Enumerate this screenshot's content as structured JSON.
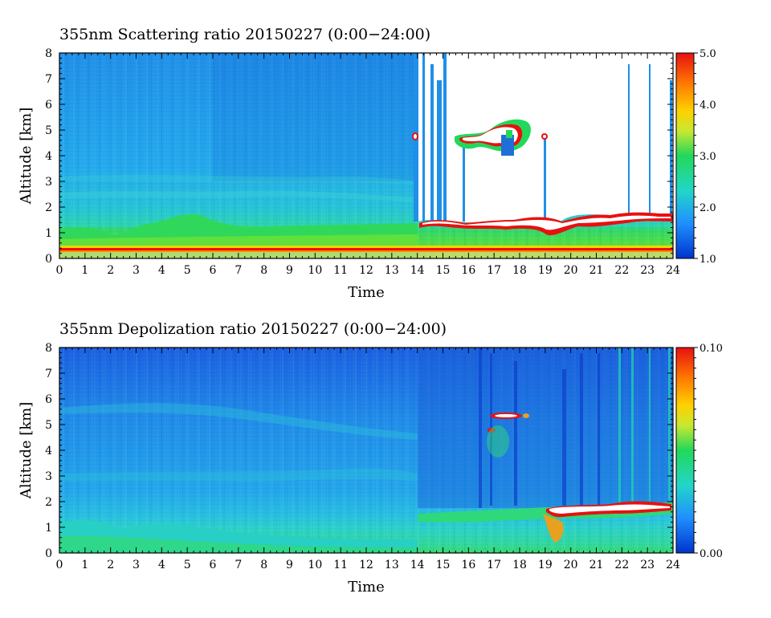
{
  "chart_data": [
    {
      "type": "heatmap",
      "title": "355nm Scattering ratio  20150227 (0:00−24:00)",
      "xlabel": "Time",
      "ylabel": "Altitude [km]",
      "x_ticks": [
        "0",
        "1",
        "2",
        "3",
        "4",
        "5",
        "6",
        "7",
        "8",
        "9",
        "10",
        "11",
        "12",
        "13",
        "14",
        "15",
        "16",
        "17",
        "18",
        "19",
        "20",
        "21",
        "22",
        "23",
        "24"
      ],
      "y_ticks": [
        "0",
        "1",
        "2",
        "3",
        "4",
        "5",
        "6",
        "7",
        "8"
      ],
      "xlim": [
        0,
        24
      ],
      "ylim": [
        0,
        8
      ],
      "colorbar": {
        "min": 1.0,
        "max": 5.0,
        "ticks": [
          "1.0",
          "2.0",
          "3.0",
          "4.0",
          "5.0"
        ]
      },
      "colors": [
        "#0033cc",
        "#1f9bff",
        "#22d6c8",
        "#22d85a",
        "#e8e830",
        "#ff8a00",
        "#e81010"
      ],
      "features": {
        "boundary_layer_top_km": 1.2,
        "near_surface_band_km": [
          0.3,
          0.45
        ],
        "clouds": [
          {
            "time_start": 14.0,
            "time_end": 24.0,
            "altitude_km": 1.4,
            "label": "low cloud layer (saturated)"
          },
          {
            "time_start": 16.3,
            "time_end": 18.4,
            "altitude_km": 4.8,
            "label": "mid-level cloud"
          }
        ],
        "no_data_above_cloud": true
      }
    },
    {
      "type": "heatmap",
      "title": "355nm Depolization ratio  20150227 (0:00−24:00)",
      "xlabel": "Time",
      "ylabel": "Altitude [km]",
      "x_ticks": [
        "0",
        "1",
        "2",
        "3",
        "4",
        "5",
        "6",
        "7",
        "8",
        "9",
        "10",
        "11",
        "12",
        "13",
        "14",
        "15",
        "16",
        "17",
        "18",
        "19",
        "20",
        "21",
        "22",
        "23",
        "24"
      ],
      "y_ticks": [
        "0",
        "1",
        "2",
        "3",
        "4",
        "5",
        "6",
        "7",
        "8"
      ],
      "xlim": [
        0,
        24
      ],
      "ylim": [
        0,
        8
      ],
      "colorbar": {
        "min": 0.0,
        "max": 0.1,
        "ticks": [
          "0.00",
          "0.10"
        ]
      },
      "colors": [
        "#0033cc",
        "#1f9bff",
        "#22d6c8",
        "#22d85a",
        "#e8e830",
        "#ff8a00",
        "#e81010"
      ],
      "features": {
        "boundary_layer_top_km": 1.0,
        "clouds": [
          {
            "time_start": 19.0,
            "time_end": 24.0,
            "altitude_km": 1.8,
            "label": "low cloud layer"
          },
          {
            "time_start": 16.5,
            "time_end": 18.0,
            "altitude_km": 5.4,
            "label": "mid-level cloud"
          }
        ]
      }
    }
  ]
}
